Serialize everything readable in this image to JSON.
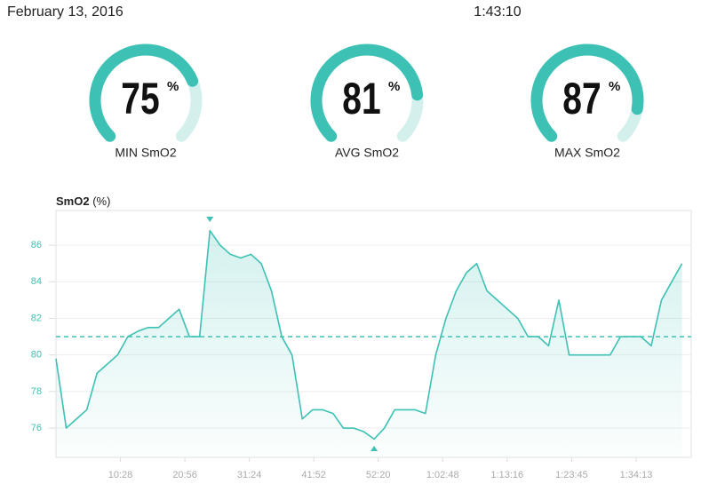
{
  "header": {
    "date": "February 13, 2016",
    "duration": "1:43:10"
  },
  "gauges": [
    {
      "value": 75,
      "unit": "%",
      "label": "MIN SmO2"
    },
    {
      "value": 81,
      "unit": "%",
      "label": "AVG SmO2"
    },
    {
      "value": 87,
      "unit": "%",
      "label": "MAX SmO2"
    }
  ],
  "chart_data": {
    "type": "line",
    "y_label": "SmO2",
    "y_unit": "(%)",
    "color": "#3cc1b4",
    "x": [
      0,
      100,
      200,
      300,
      400,
      500,
      600,
      700,
      800,
      900,
      1000,
      1100,
      1200,
      1300,
      1400,
      1500,
      1600,
      1700,
      1800,
      1900,
      2000,
      2100,
      2200,
      2300,
      2400,
      2500,
      2600,
      2700,
      2800,
      2900,
      3000,
      3100,
      3200,
      3300,
      3400,
      3500,
      3600,
      3700,
      3800,
      3900,
      4000,
      4100,
      4200,
      4300,
      4400,
      4500,
      4600,
      4700,
      4800,
      4900,
      5000,
      5100,
      5200,
      5300,
      5400,
      5500,
      5600,
      5700,
      5800,
      5900,
      6000,
      6100
    ],
    "values": [
      79.8,
      76,
      76.5,
      77,
      79,
      79.5,
      80,
      81,
      81.3,
      81.5,
      81.5,
      82,
      82.5,
      81,
      81,
      86.8,
      86,
      85.5,
      85.3,
      85.5,
      85,
      83.5,
      81,
      80,
      76.5,
      77,
      77,
      76.8,
      76,
      76,
      75.8,
      75.4,
      76,
      77,
      77,
      77,
      76.8,
      80,
      82,
      83.5,
      84.5,
      85,
      83.5,
      83,
      82.5,
      82,
      81,
      81,
      80.5,
      83,
      80,
      80,
      80,
      80,
      80,
      81,
      81,
      81,
      80.5,
      83,
      84,
      85
    ],
    "xlim": [
      0,
      6190
    ],
    "xticks": [
      {
        "value": 628,
        "label": "10:28"
      },
      {
        "value": 1256,
        "label": "20:56"
      },
      {
        "value": 1884,
        "label": "31:24"
      },
      {
        "value": 2512,
        "label": "41:52"
      },
      {
        "value": 3140,
        "label": "52:20"
      },
      {
        "value": 3768,
        "label": "1:02:48"
      },
      {
        "value": 4396,
        "label": "1:13:16"
      },
      {
        "value": 5025,
        "label": "1:23:45"
      },
      {
        "value": 5653,
        "label": "1:34:13"
      }
    ],
    "ylim": [
      74.4,
      87.9
    ],
    "yticks": [
      76,
      78,
      80,
      82,
      84,
      86
    ],
    "grid": true
  }
}
